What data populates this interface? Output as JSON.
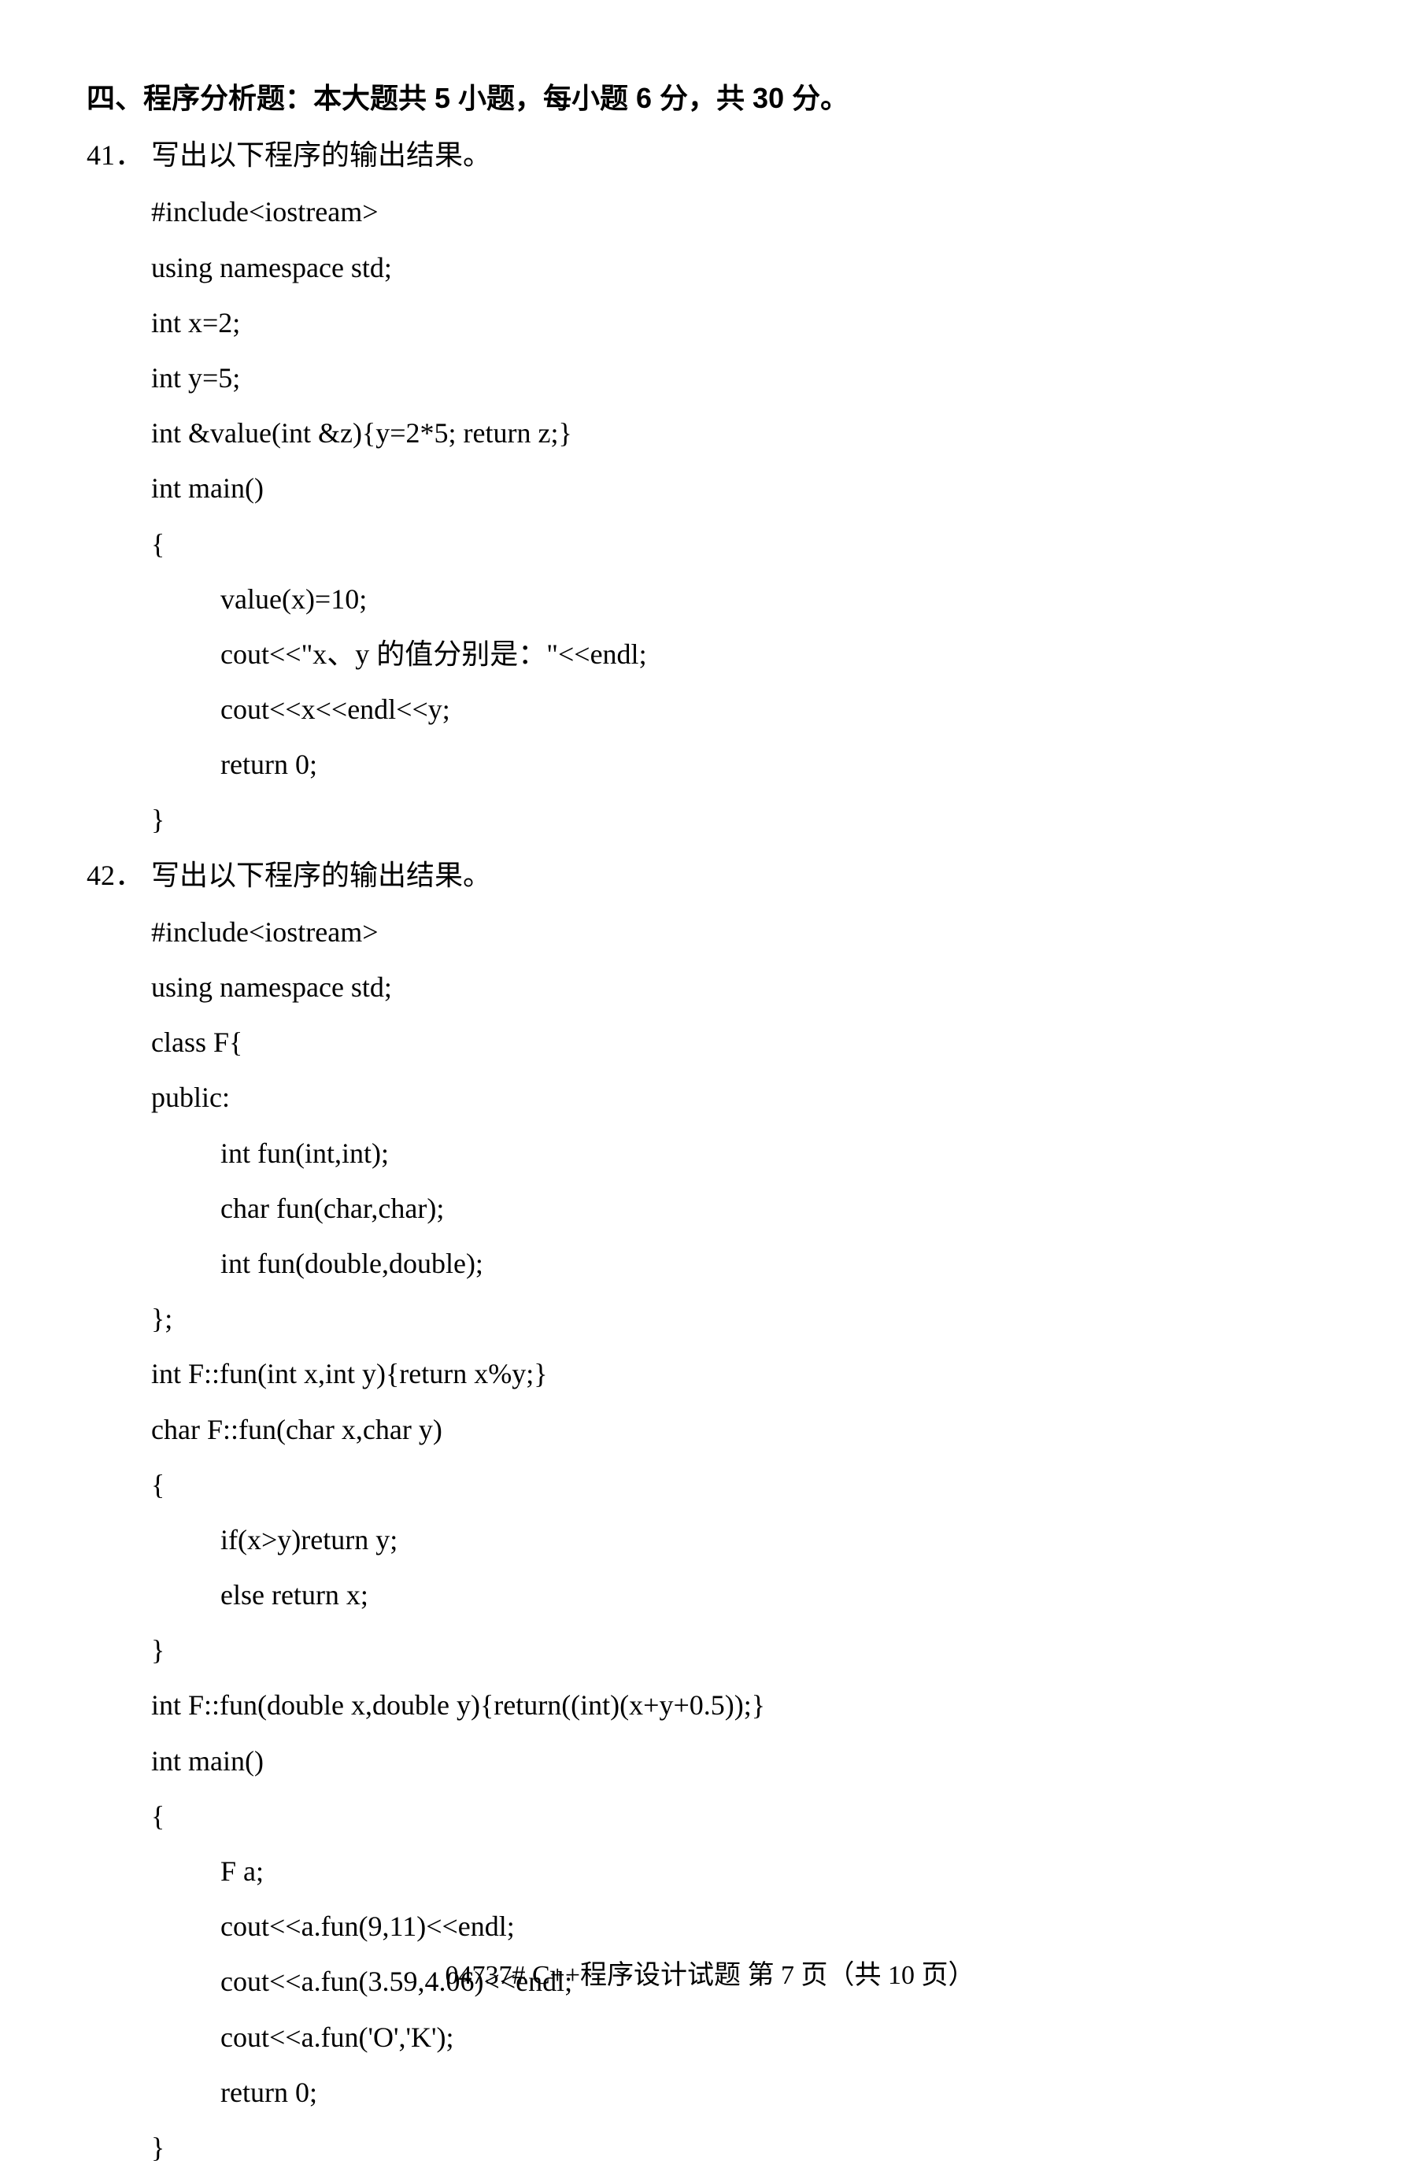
{
  "section_title": "四、程序分析题：本大题共 5 小题，每小题 6 分，共 30 分。",
  "q41": {
    "number": "41．",
    "prompt": "写出以下程序的输出结果。",
    "code": [
      {
        "text": "#include<iostream>",
        "indent": 0
      },
      {
        "text": "using namespace std;",
        "indent": 0
      },
      {
        "text": "int x=2;",
        "indent": 0
      },
      {
        "text": "int y=5;",
        "indent": 0
      },
      {
        "text": "int &value(int &z){y=2*5; return z;}",
        "indent": 0
      },
      {
        "text": "int main()",
        "indent": 0
      },
      {
        "text": "{",
        "indent": 0
      },
      {
        "text": "value(x)=10;",
        "indent": 1
      },
      {
        "text": "cout<<\"x、y 的值分别是：\"<<endl;",
        "indent": 1
      },
      {
        "text": "cout<<x<<endl<<y;",
        "indent": 1
      },
      {
        "text": "return 0;",
        "indent": 1
      },
      {
        "text": "}",
        "indent": 0
      }
    ]
  },
  "q42": {
    "number": "42．",
    "prompt": "写出以下程序的输出结果。",
    "code": [
      {
        "text": "#include<iostream>",
        "indent": 0
      },
      {
        "text": "using namespace std;",
        "indent": 0
      },
      {
        "text": "class F{",
        "indent": 0
      },
      {
        "text": "public:",
        "indent": 0
      },
      {
        "text": "int fun(int,int);",
        "indent": 1
      },
      {
        "text": "char fun(char,char);",
        "indent": 1
      },
      {
        "text": "int fun(double,double);",
        "indent": 1
      },
      {
        "text": "};",
        "indent": 0
      },
      {
        "text": "int F::fun(int x,int y){return x%y;}",
        "indent": 0
      },
      {
        "text": "char F::fun(char x,char y)",
        "indent": 0
      },
      {
        "text": "{",
        "indent": 0
      },
      {
        "text": "if(x>y)return y;",
        "indent": 1
      },
      {
        "text": "else return x;",
        "indent": 1
      },
      {
        "text": "}",
        "indent": 0
      },
      {
        "text": "int F::fun(double x,double y){return((int)(x+y+0.5));}",
        "indent": 0
      },
      {
        "text": "int main()",
        "indent": 0
      },
      {
        "text": "{",
        "indent": 0
      },
      {
        "text": "F a;",
        "indent": 1
      },
      {
        "text": "cout<<a.fun(9,11)<<endl;",
        "indent": 1
      },
      {
        "text": "cout<<a.fun(3.59,4.06)<<endl;",
        "indent": 1
      },
      {
        "text": "cout<<a.fun('O','K');",
        "indent": 1
      },
      {
        "text": "return 0;",
        "indent": 1
      },
      {
        "text": "}",
        "indent": 0
      }
    ]
  },
  "footer": "04737#  C++程序设计试题  第 7 页（共 10 页）"
}
